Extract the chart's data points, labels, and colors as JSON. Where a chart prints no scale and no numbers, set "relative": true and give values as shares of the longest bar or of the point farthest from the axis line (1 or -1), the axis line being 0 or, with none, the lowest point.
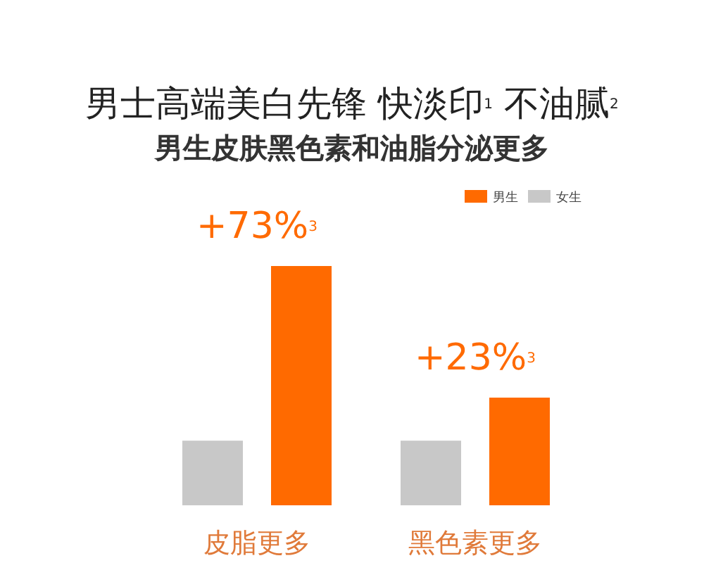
{
  "chart_data": {
    "type": "bar",
    "title": "男士高端美白先锋 快淡印$^{1}$ 不油腻$^{2}$",
    "subtitle": "男生皮肤黑色素和油脂分泌更多",
    "categories": [
      "皮脂更多",
      "黑色素更多"
    ],
    "relative": true,
    "series": [
      {
        "name": "男生",
        "color": "#ff6a00",
        "values": [
          1,
          0.45
        ]
      },
      {
        "name": "女生",
        "color": "#c8c8c8",
        "values": [
          0.27,
          0.27
        ]
      }
    ],
    "annotations": [
      "+73%$^{3}$",
      "+23%$^{3}$"
    ],
    "legend": "top right"
  }
}
